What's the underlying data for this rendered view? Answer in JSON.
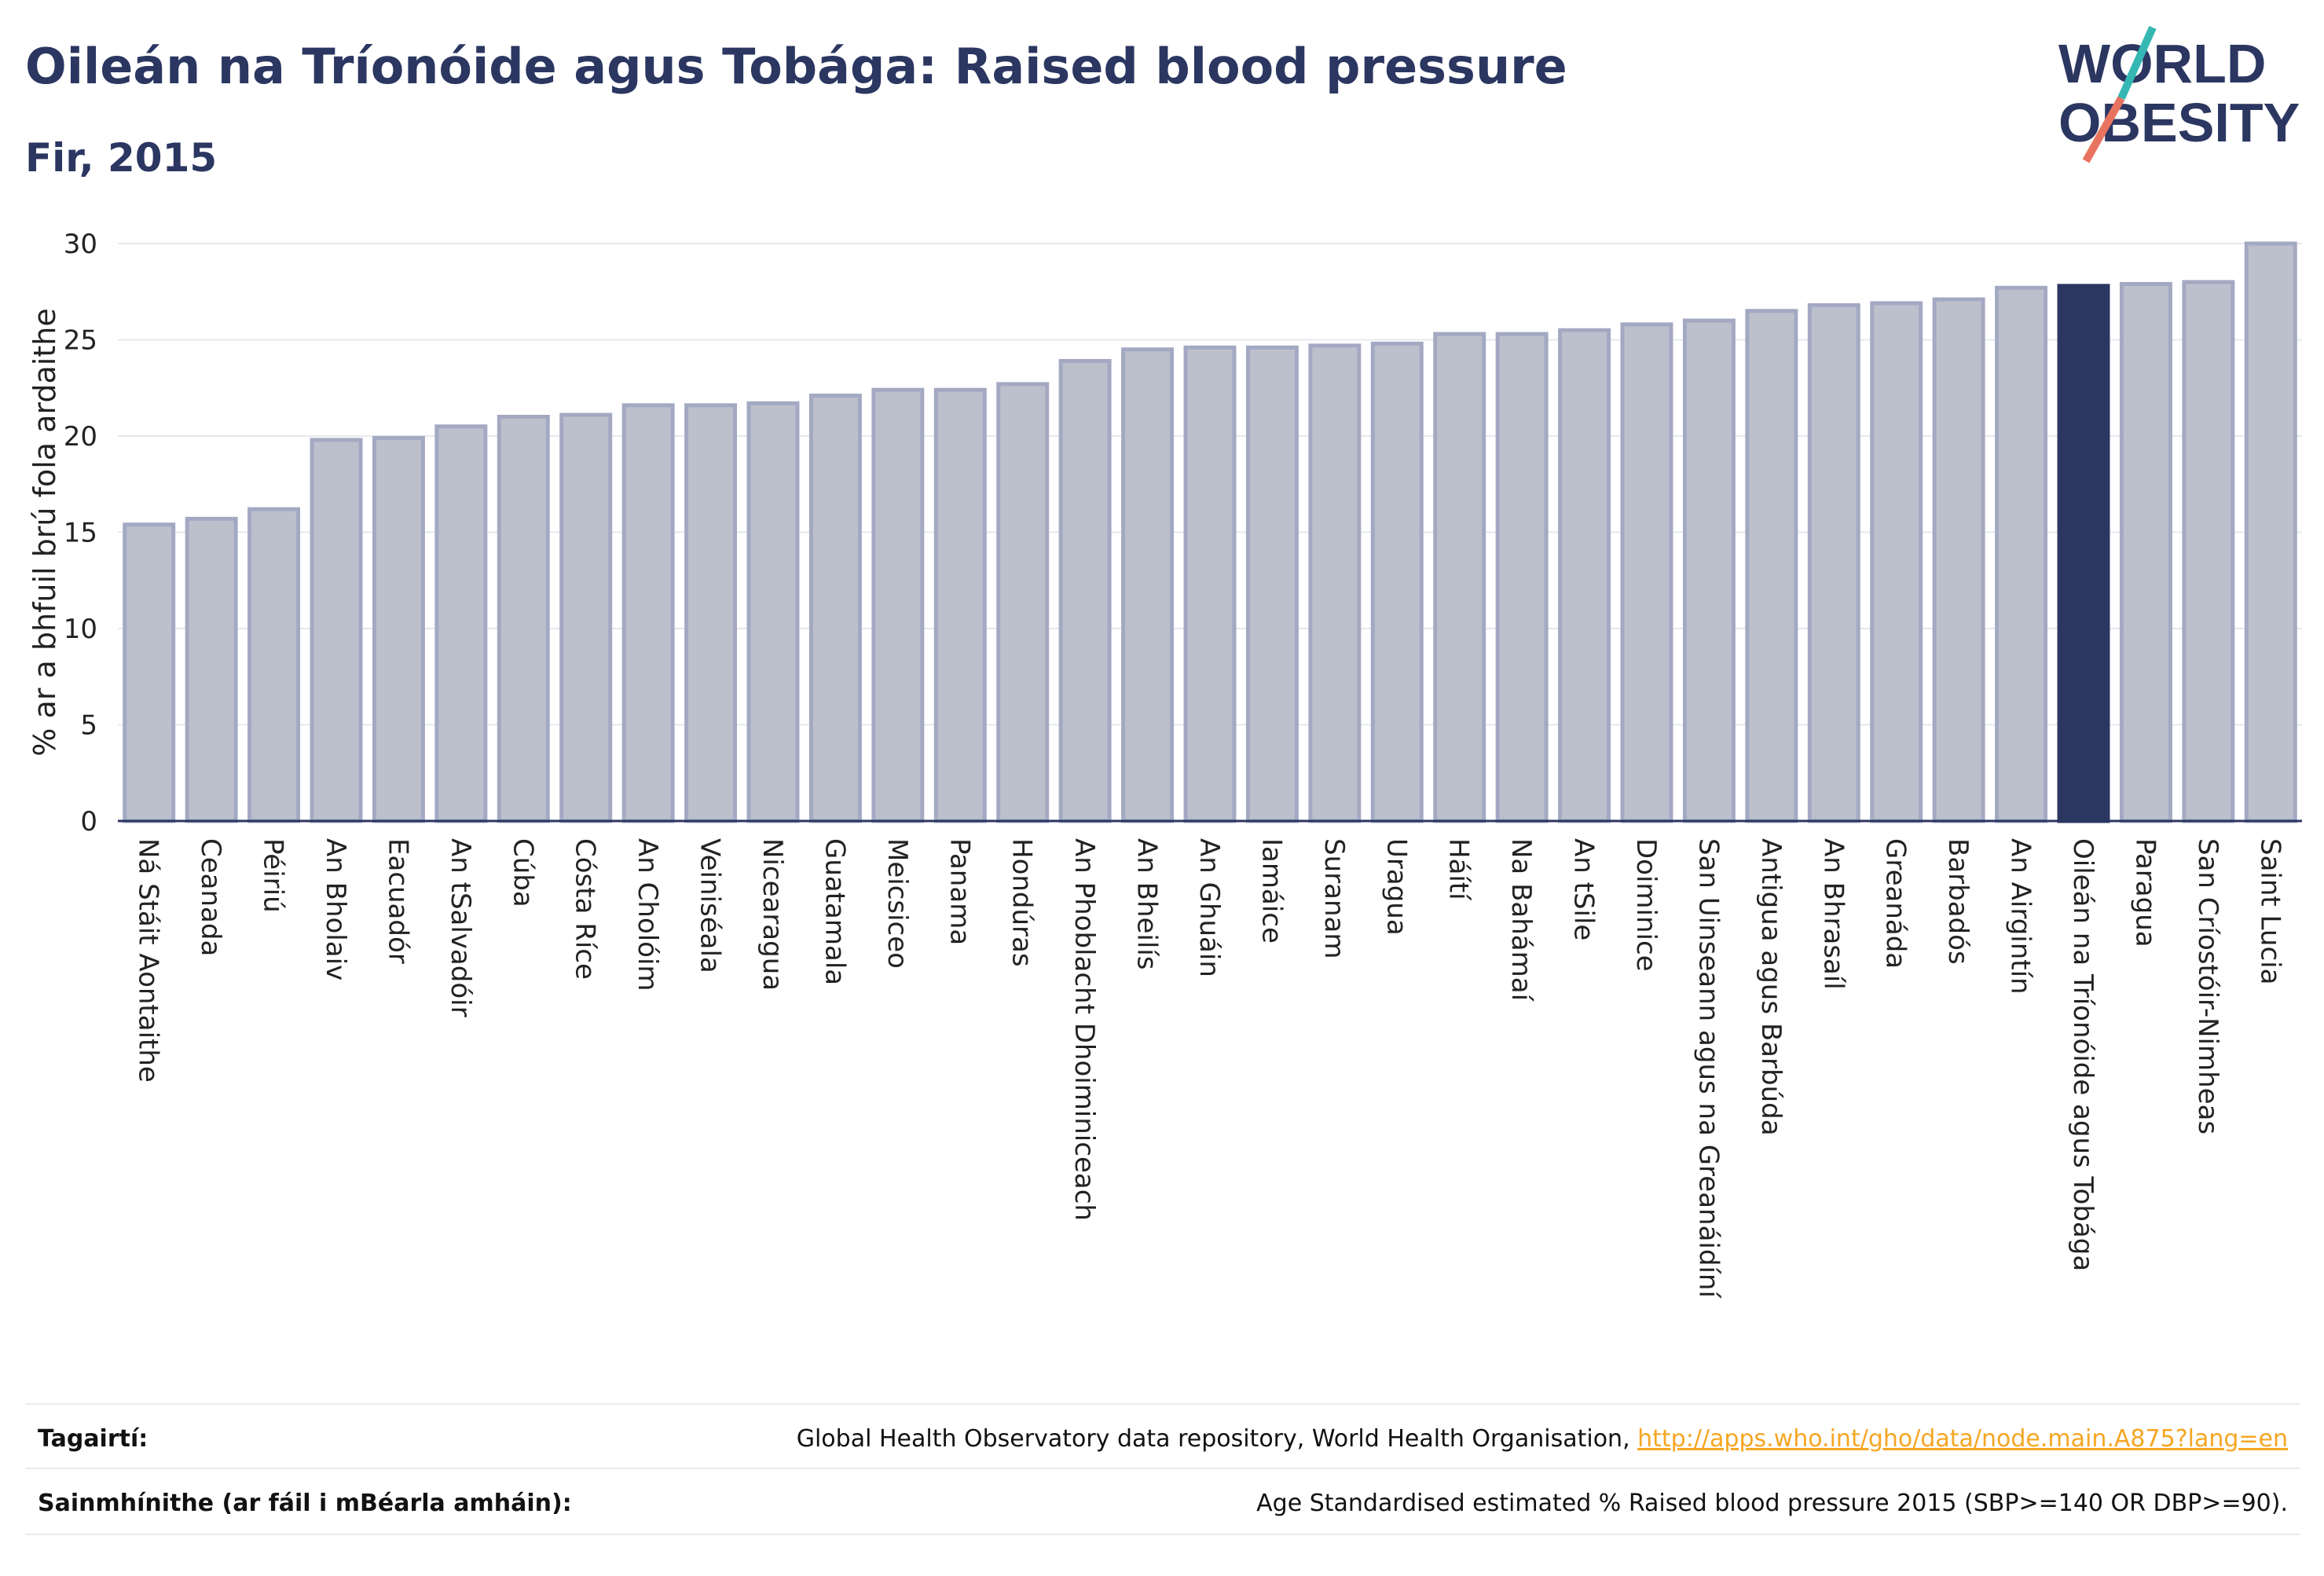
{
  "header": {
    "title": "Oileán na Tríonóide agus Tobága: Raised blood pressure",
    "subtitle": "Fir, 2015"
  },
  "logo": {
    "line1": "WORLD",
    "line2": "OBESITY"
  },
  "colors": {
    "bar": "#bcc0cd",
    "bar_border": "#a3a9c2",
    "highlight": "#2b3661",
    "grid": "#e6e8ee",
    "axis": "#2b3661",
    "link": "#f5a623"
  },
  "chart_data": {
    "type": "bar",
    "title": "Oileán na Tríonóide agus Tobága: Raised blood pressure",
    "subtitle": "Fir, 2015",
    "ylabel": "% ar a bhfuil brú fola ardaithe",
    "ylim": [
      0,
      30
    ],
    "yticks": [
      0,
      5,
      10,
      15,
      20,
      25,
      30
    ],
    "grid": true,
    "highlight": "Oileán na Tríonóide agus Tobága",
    "categories": [
      "Ná Stáit Aontaithe",
      "Ceanada",
      "Péiriú",
      "An Bholaiv",
      "Eacuadór",
      "An tSalvadóir",
      "Cúba",
      "Cósta Ríce",
      "An Cholóim",
      "Veiniséala",
      "Nicearagua",
      "Guatamala",
      "Meicsiceo",
      "Panama",
      "Hondúras",
      "An Phoblacht Dhoiminiceach",
      "An Bheilís",
      "An Ghuáin",
      "Iamáice",
      "Suranam",
      "Uragua",
      "Háítí",
      "Na Bahámaí",
      "An tSile",
      "Doiminice",
      "San Uinseann agus na Greanáidíní",
      "Antigua agus Barbúda",
      "An Bhrasaíl",
      "Greanáda",
      "Barbadós",
      "An Airgintín",
      "Oileán na Tríonóide agus Tobága",
      "Paragua",
      "San Críostóir-Nimheas",
      "Saint Lucia"
    ],
    "values": [
      15.4,
      15.7,
      16.2,
      19.8,
      19.9,
      20.5,
      21.0,
      21.1,
      21.6,
      21.6,
      21.7,
      22.1,
      22.4,
      22.4,
      22.7,
      23.9,
      24.5,
      24.6,
      24.6,
      24.7,
      24.8,
      25.3,
      25.3,
      25.5,
      25.8,
      26.0,
      26.5,
      26.8,
      26.9,
      27.1,
      27.7,
      27.8,
      27.9,
      28.0,
      30.0
    ]
  },
  "footer": {
    "references_label": "Tagairtí:",
    "references_text": "Global Health Observatory data repository, World Health Organisation, ",
    "references_link": "http://apps.who.int/gho/data/node.main.A875?lang=en",
    "definitions_label": "Sainmhínithe (ar fáil i mBéarla amháin):",
    "definitions_text": "Age Standardised estimated % Raised blood pressure 2015 (SBP>=140 OR DBP>=90)."
  }
}
